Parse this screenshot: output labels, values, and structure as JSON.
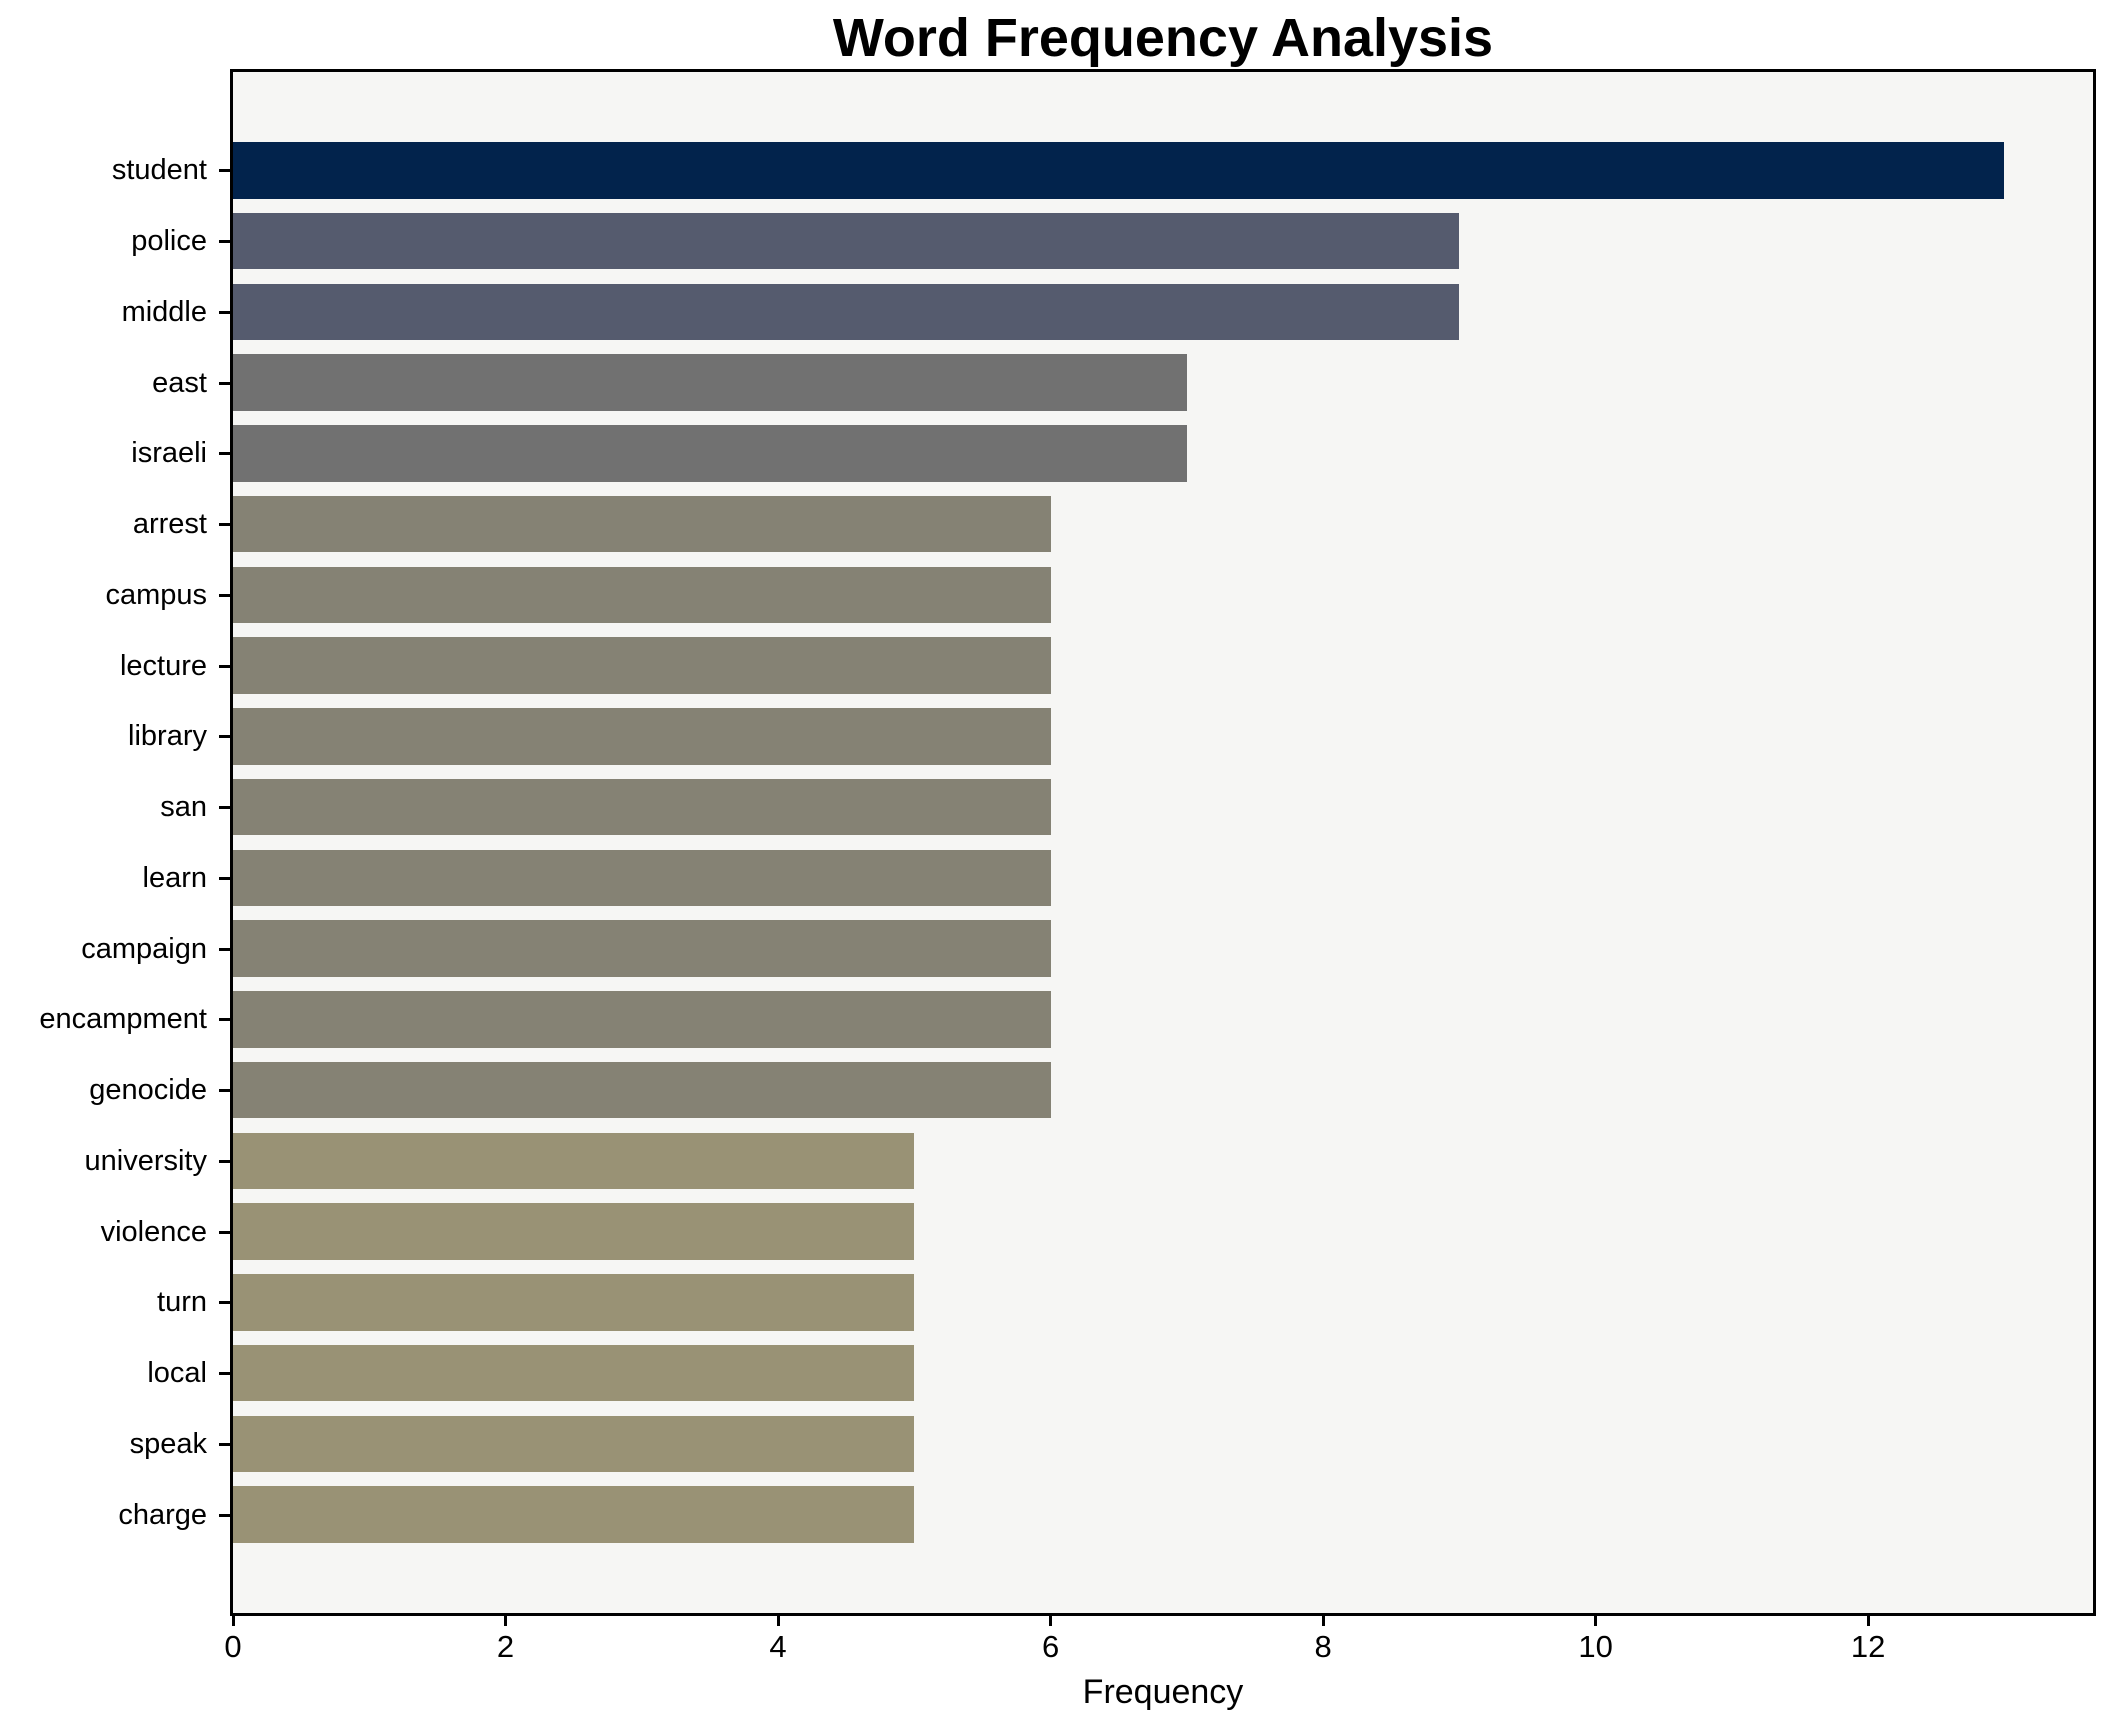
{
  "chart_data": {
    "type": "bar",
    "orientation": "horizontal",
    "title": "Word Frequency Analysis",
    "xlabel": "Frequency",
    "ylabel": "",
    "xlim": [
      0,
      13.65
    ],
    "xticks": [
      "0",
      "2",
      "4",
      "6",
      "8",
      "10",
      "12"
    ],
    "xtick_values": [
      0,
      2,
      4,
      6,
      8,
      10,
      12
    ],
    "grid": false,
    "legend": false,
    "plot_background": "#f6f6f4",
    "figure_background": "#ffffff",
    "spine_color": "#000000",
    "categories": [
      "student",
      "police",
      "middle",
      "east",
      "israeli",
      "arrest",
      "campus",
      "lecture",
      "library",
      "san",
      "learn",
      "campaign",
      "encampment",
      "genocide",
      "university",
      "violence",
      "turn",
      "local",
      "speak",
      "charge"
    ],
    "values": [
      13,
      9,
      9,
      7,
      7,
      6,
      6,
      6,
      6,
      6,
      6,
      6,
      6,
      6,
      5,
      5,
      5,
      5,
      5,
      5
    ],
    "bar_colors": [
      "#02234c",
      "#555b6e",
      "#555b6e",
      "#717171",
      "#717171",
      "#858274",
      "#858274",
      "#858274",
      "#858274",
      "#858274",
      "#858274",
      "#858274",
      "#858274",
      "#858274",
      "#999275",
      "#999275",
      "#999275",
      "#999275",
      "#999275",
      "#999275"
    ]
  }
}
